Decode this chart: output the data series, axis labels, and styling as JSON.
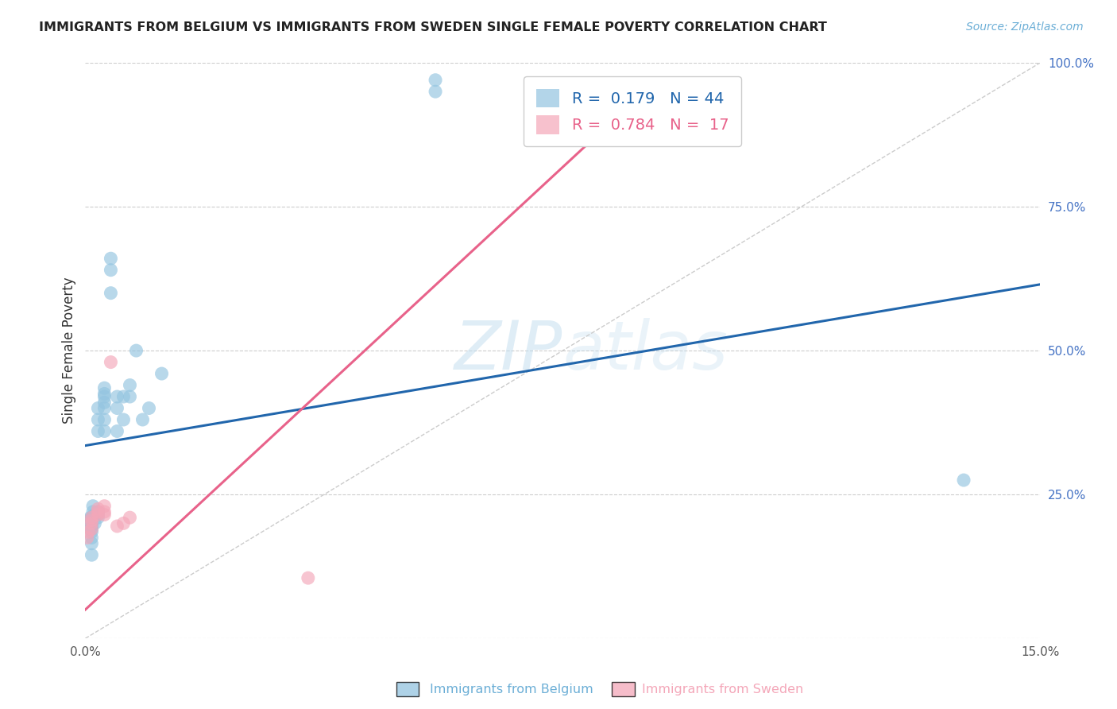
{
  "title": "IMMIGRANTS FROM BELGIUM VS IMMIGRANTS FROM SWEDEN SINGLE FEMALE POVERTY CORRELATION CHART",
  "source": "Source: ZipAtlas.com",
  "xlabel_belgium": "Immigrants from Belgium",
  "xlabel_sweden": "Immigrants from Sweden",
  "ylabel": "Single Female Poverty",
  "watermark": "ZIPatlas",
  "xlim": [
    0.0,
    0.15
  ],
  "ylim": [
    0.0,
    1.0
  ],
  "belgium_R": 0.179,
  "belgium_N": 44,
  "sweden_R": 0.784,
  "sweden_N": 17,
  "blue_color": "#93c4e0",
  "pink_color": "#f4a7b9",
  "blue_line_color": "#2166ac",
  "pink_line_color": "#e8628a",
  "blue_line_x0": 0.0,
  "blue_line_y0": 0.335,
  "blue_line_x1": 0.15,
  "blue_line_y1": 0.615,
  "pink_line_x0": 0.0,
  "pink_line_y0": 0.05,
  "pink_line_x1": 0.08,
  "pink_line_y1": 0.87,
  "belgium_x": [
    0.0005,
    0.0008,
    0.001,
    0.001,
    0.001,
    0.001,
    0.001,
    0.001,
    0.001,
    0.001,
    0.0012,
    0.0012,
    0.0015,
    0.0015,
    0.002,
    0.002,
    0.002,
    0.002,
    0.002,
    0.002,
    0.003,
    0.003,
    0.003,
    0.003,
    0.003,
    0.003,
    0.003,
    0.004,
    0.004,
    0.004,
    0.005,
    0.005,
    0.005,
    0.006,
    0.006,
    0.007,
    0.007,
    0.008,
    0.009,
    0.01,
    0.012,
    0.055,
    0.055,
    0.138
  ],
  "belgium_y": [
    0.205,
    0.21,
    0.19,
    0.2,
    0.21,
    0.195,
    0.185,
    0.175,
    0.165,
    0.145,
    0.22,
    0.23,
    0.2,
    0.215,
    0.215,
    0.21,
    0.22,
    0.36,
    0.38,
    0.4,
    0.36,
    0.38,
    0.4,
    0.41,
    0.42,
    0.425,
    0.435,
    0.6,
    0.64,
    0.66,
    0.36,
    0.4,
    0.42,
    0.38,
    0.42,
    0.42,
    0.44,
    0.5,
    0.38,
    0.4,
    0.46,
    0.95,
    0.97,
    0.275
  ],
  "sweden_x": [
    0.0003,
    0.0005,
    0.001,
    0.001,
    0.001,
    0.001,
    0.002,
    0.002,
    0.002,
    0.003,
    0.003,
    0.003,
    0.004,
    0.005,
    0.006,
    0.007,
    0.035
  ],
  "sweden_y": [
    0.175,
    0.185,
    0.19,
    0.2,
    0.205,
    0.21,
    0.215,
    0.22,
    0.225,
    0.215,
    0.22,
    0.23,
    0.48,
    0.195,
    0.2,
    0.21,
    0.105
  ]
}
